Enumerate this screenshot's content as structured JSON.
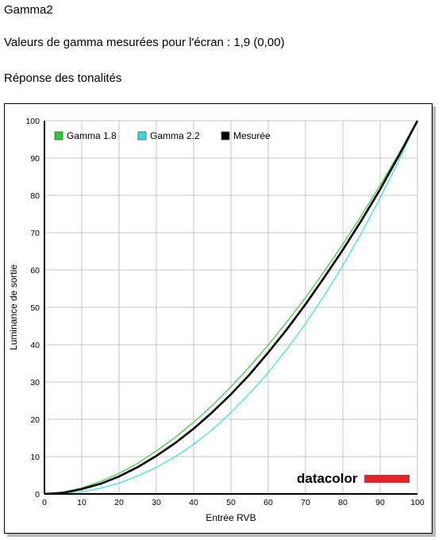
{
  "header": {
    "title": "Gamma2",
    "measured_line": "Valeurs de gamma mesurées pour l'écran : 1,9 (0,00)",
    "section_title": "Réponse des tonalités"
  },
  "brand": {
    "logo_text": "datacolor",
    "logo_bar_color": "#e0262c"
  },
  "chart_data": {
    "type": "line",
    "title": "",
    "xlabel": "Entrée RVB",
    "ylabel": "Luminance de sortie",
    "xlim": [
      0,
      100
    ],
    "ylim": [
      0,
      100
    ],
    "grid": true,
    "legend_position": "top-left",
    "xticks": [
      0,
      10,
      20,
      30,
      40,
      50,
      60,
      70,
      80,
      90,
      100
    ],
    "yticks": [
      0,
      10,
      20,
      30,
      40,
      50,
      60,
      70,
      80,
      90,
      100
    ],
    "x": [
      0,
      5,
      10,
      15,
      20,
      25,
      30,
      35,
      40,
      45,
      50,
      55,
      60,
      65,
      70,
      75,
      80,
      85,
      90,
      95,
      100
    ],
    "series": [
      {
        "name": "Gamma 1.8",
        "color": "#33cc33",
        "values": [
          0,
          0.5,
          1.6,
          3.3,
          5.5,
          8.2,
          11.5,
          15.1,
          19.2,
          23.7,
          28.7,
          34.1,
          39.9,
          46.1,
          52.6,
          59.6,
          66.9,
          74.6,
          82.7,
          91.2,
          100
        ]
      },
      {
        "name": "Gamma 2.2",
        "color": "#33dddd",
        "values": [
          0,
          0.1,
          0.6,
          1.5,
          2.9,
          4.8,
          7.1,
          9.9,
          13.3,
          17.2,
          21.8,
          26.9,
          32.5,
          38.8,
          45.6,
          53.1,
          61.2,
          69.9,
          79.3,
          89.3,
          100
        ]
      },
      {
        "name": "Mesurée",
        "color": "#000000",
        "values": [
          0,
          0.3,
          1.3,
          2.7,
          4.7,
          7.2,
          10.2,
          13.6,
          17.5,
          21.9,
          26.7,
          32.0,
          37.9,
          44.1,
          50.8,
          58.0,
          65.4,
          73.3,
          81.6,
          90.6,
          100
        ]
      }
    ]
  }
}
